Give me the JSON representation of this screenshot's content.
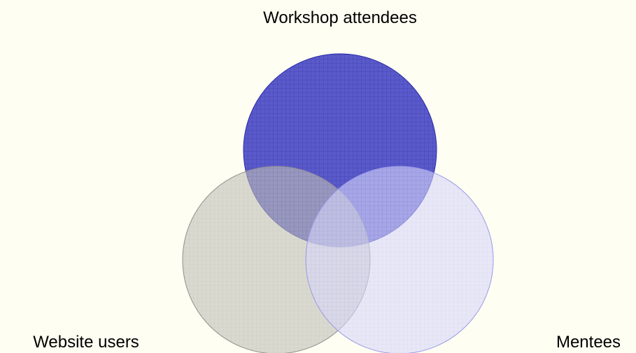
{
  "venn": {
    "type": "venn3",
    "sets": [
      {
        "key": "workshop",
        "label": "Workshop attendees",
        "fill": "#4040c8",
        "stroke": "#2a2aa8",
        "opacity": 0.85
      },
      {
        "key": "website",
        "label": "Website users",
        "fill": "#b4b4b4",
        "stroke": "#909090",
        "opacity": 0.55
      },
      {
        "key": "mentees",
        "label": "Mentees",
        "fill": "#c8c8f8",
        "stroke": "#9a9ae8",
        "opacity": 0.55
      }
    ],
    "background": "#fefef2",
    "pattern": "grid-hatch"
  }
}
